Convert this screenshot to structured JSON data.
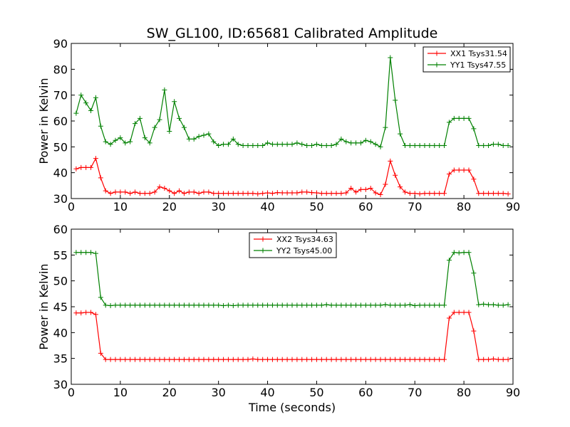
{
  "title": "SW_GL100, ID:65681 Calibrated Amplitude",
  "chart_data": [
    {
      "type": "line",
      "xlabel": "",
      "ylabel": "Power in Kelvin",
      "xlim": [
        0,
        90
      ],
      "ylim": [
        30,
        90
      ],
      "xticks": [
        "0",
        "10",
        "20",
        "30",
        "40",
        "50",
        "60",
        "70",
        "80",
        "90"
      ],
      "yticks": [
        "30",
        "40",
        "50",
        "60",
        "70",
        "80",
        "90"
      ],
      "legend_position": "top-right",
      "grid": false,
      "series": [
        {
          "name": "XX1 Tsys31.54",
          "color": "#ff0000",
          "x": [
            1,
            2,
            3,
            4,
            5,
            6,
            7,
            8,
            9,
            10,
            11,
            12,
            13,
            14,
            15,
            16,
            17,
            18,
            19,
            20,
            21,
            22,
            23,
            24,
            25,
            26,
            27,
            28,
            29,
            30,
            31,
            32,
            33,
            34,
            35,
            36,
            37,
            38,
            39,
            40,
            41,
            42,
            43,
            44,
            45,
            46,
            47,
            48,
            49,
            50,
            51,
            52,
            53,
            54,
            55,
            56,
            57,
            58,
            59,
            60,
            61,
            62,
            63,
            64,
            65,
            66,
            67,
            68,
            69,
            70,
            71,
            72,
            73,
            74,
            75,
            76,
            77,
            78,
            79,
            80,
            81,
            82,
            83,
            84,
            85,
            86,
            87,
            88,
            89
          ],
          "y": [
            41.5,
            42,
            42,
            42,
            45.5,
            38,
            33,
            32,
            32.5,
            32.5,
            32.5,
            32,
            32.5,
            32,
            32,
            32,
            32.5,
            34.5,
            34,
            33,
            32,
            33,
            32,
            32.5,
            32.5,
            32,
            32.5,
            32.5,
            32,
            32,
            32,
            32,
            32,
            32,
            32,
            32,
            32,
            31.8,
            32,
            32.2,
            32,
            32.3,
            32.2,
            32.2,
            32.2,
            32.2,
            32.5,
            32.5,
            32.3,
            32.2,
            32,
            32,
            32,
            32,
            32,
            32.2,
            34,
            32.5,
            33.5,
            33.5,
            34,
            32.2,
            31.5,
            35.5,
            44.5,
            39,
            34.5,
            32.5,
            32,
            32,
            31.8,
            32,
            32,
            32,
            32,
            32,
            39.5,
            41,
            41,
            41,
            41,
            37.5,
            32,
            32,
            32,
            32,
            32,
            32,
            31.8
          ]
        },
        {
          "name": "YY1 Tsys47.55",
          "color": "#008000",
          "x": [
            1,
            2,
            3,
            4,
            5,
            6,
            7,
            8,
            9,
            10,
            11,
            12,
            13,
            14,
            15,
            16,
            17,
            18,
            19,
            20,
            21,
            22,
            23,
            24,
            25,
            26,
            27,
            28,
            29,
            30,
            31,
            32,
            33,
            34,
            35,
            36,
            37,
            38,
            39,
            40,
            41,
            42,
            43,
            44,
            45,
            46,
            47,
            48,
            49,
            50,
            51,
            52,
            53,
            54,
            55,
            56,
            57,
            58,
            59,
            60,
            61,
            62,
            63,
            64,
            65,
            66,
            67,
            68,
            69,
            70,
            71,
            72,
            73,
            74,
            75,
            76,
            77,
            78,
            79,
            80,
            81,
            82,
            83,
            84,
            85,
            86,
            87,
            88,
            89
          ],
          "y": [
            63,
            70,
            67,
            64,
            69,
            58,
            52,
            51,
            52.5,
            53.5,
            51.5,
            52,
            59,
            61,
            53.5,
            51.5,
            57.5,
            60.5,
            72,
            56,
            67.5,
            61,
            57.5,
            53,
            53,
            54,
            54.5,
            55,
            52,
            50.5,
            51,
            51,
            53,
            51,
            50.5,
            50.5,
            50.5,
            50.5,
            50.5,
            51.5,
            51,
            51,
            51,
            51,
            51,
            51.5,
            51,
            50.5,
            50.5,
            51,
            50.5,
            50.5,
            50.5,
            51,
            53,
            52,
            51.5,
            51.5,
            51.5,
            52.5,
            52,
            51,
            50,
            57.5,
            84.5,
            68,
            55,
            50.5,
            50.5,
            50.5,
            50.5,
            50.5,
            50.5,
            50.5,
            50.5,
            50.5,
            59.5,
            61,
            61,
            61,
            61,
            57,
            50.5,
            50.5,
            50.5,
            51,
            51,
            50.5,
            50.5
          ]
        }
      ]
    },
    {
      "type": "line",
      "xlabel": "Time (seconds)",
      "ylabel": "Power in Kelvin",
      "xlim": [
        0,
        90
      ],
      "ylim": [
        30,
        60
      ],
      "xticks": [
        "0",
        "10",
        "20",
        "30",
        "40",
        "50",
        "60",
        "70",
        "80",
        "90"
      ],
      "yticks": [
        "30",
        "35",
        "40",
        "45",
        "50",
        "55",
        "60"
      ],
      "legend_position": "upper-center",
      "grid": false,
      "series": [
        {
          "name": "XX2 Tsys34.63",
          "color": "#ff0000",
          "x": [
            1,
            2,
            3,
            4,
            5,
            6,
            7,
            8,
            9,
            10,
            11,
            12,
            13,
            14,
            15,
            16,
            17,
            18,
            19,
            20,
            21,
            22,
            23,
            24,
            25,
            26,
            27,
            28,
            29,
            30,
            31,
            32,
            33,
            34,
            35,
            36,
            37,
            38,
            39,
            40,
            41,
            42,
            43,
            44,
            45,
            46,
            47,
            48,
            49,
            50,
            51,
            52,
            53,
            54,
            55,
            56,
            57,
            58,
            59,
            60,
            61,
            62,
            63,
            64,
            65,
            66,
            67,
            68,
            69,
            70,
            71,
            72,
            73,
            74,
            75,
            76,
            77,
            78,
            79,
            80,
            81,
            82,
            83,
            84,
            85,
            86,
            87,
            88,
            89
          ],
          "y": [
            43.8,
            43.8,
            43.9,
            43.9,
            43.5,
            36,
            34.8,
            34.8,
            34.8,
            34.8,
            34.8,
            34.8,
            34.8,
            34.8,
            34.8,
            34.8,
            34.8,
            34.8,
            34.8,
            34.8,
            34.8,
            34.8,
            34.8,
            34.8,
            34.8,
            34.8,
            34.8,
            34.8,
            34.8,
            34.8,
            34.8,
            34.8,
            34.8,
            34.8,
            34.8,
            34.8,
            34.9,
            34.8,
            34.8,
            34.8,
            34.8,
            34.8,
            34.8,
            34.8,
            34.8,
            34.8,
            34.8,
            34.8,
            34.8,
            34.8,
            34.8,
            34.8,
            34.8,
            34.8,
            34.8,
            34.8,
            34.8,
            34.8,
            34.8,
            34.8,
            34.8,
            34.8,
            34.8,
            34.8,
            34.8,
            34.8,
            34.8,
            34.8,
            34.8,
            34.8,
            34.8,
            34.8,
            34.8,
            34.8,
            34.8,
            34.8,
            42.8,
            43.9,
            43.9,
            43.9,
            43.9,
            40.3,
            34.8,
            34.8,
            34.8,
            34.9,
            34.8,
            34.8,
            34.8
          ]
        },
        {
          "name": "YY2 Tsys45.00",
          "color": "#008000",
          "x": [
            1,
            2,
            3,
            4,
            5,
            6,
            7,
            8,
            9,
            10,
            11,
            12,
            13,
            14,
            15,
            16,
            17,
            18,
            19,
            20,
            21,
            22,
            23,
            24,
            25,
            26,
            27,
            28,
            29,
            30,
            31,
            32,
            33,
            34,
            35,
            36,
            37,
            38,
            39,
            40,
            41,
            42,
            43,
            44,
            45,
            46,
            47,
            48,
            49,
            50,
            51,
            52,
            53,
            54,
            55,
            56,
            57,
            58,
            59,
            60,
            61,
            62,
            63,
            64,
            65,
            66,
            67,
            68,
            69,
            70,
            71,
            72,
            73,
            74,
            75,
            76,
            77,
            78,
            79,
            80,
            81,
            82,
            83,
            84,
            85,
            86,
            87,
            88,
            89
          ],
          "y": [
            55.5,
            55.5,
            55.5,
            55.5,
            55.3,
            46.8,
            45.3,
            45.2,
            45.3,
            45.3,
            45.3,
            45.3,
            45.3,
            45.3,
            45.3,
            45.3,
            45.3,
            45.3,
            45.3,
            45.3,
            45.3,
            45.3,
            45.3,
            45.3,
            45.3,
            45.3,
            45.3,
            45.3,
            45.3,
            45.3,
            45.2,
            45.3,
            45.2,
            45.3,
            45.3,
            45.3,
            45.3,
            45.3,
            45.3,
            45.3,
            45.3,
            45.3,
            45.3,
            45.3,
            45.3,
            45.3,
            45.3,
            45.3,
            45.3,
            45.3,
            45.3,
            45.4,
            45.3,
            45.3,
            45.3,
            45.3,
            45.3,
            45.3,
            45.3,
            45.3,
            45.3,
            45.3,
            45.3,
            45.4,
            45.3,
            45.3,
            45.3,
            45.3,
            45.4,
            45.2,
            45.3,
            45.3,
            45.3,
            45.3,
            45.3,
            45.3,
            54,
            55.5,
            55.4,
            55.5,
            55.5,
            51.5,
            45.4,
            45.5,
            45.4,
            45.4,
            45.3,
            45.3,
            45.4
          ]
        }
      ]
    }
  ]
}
